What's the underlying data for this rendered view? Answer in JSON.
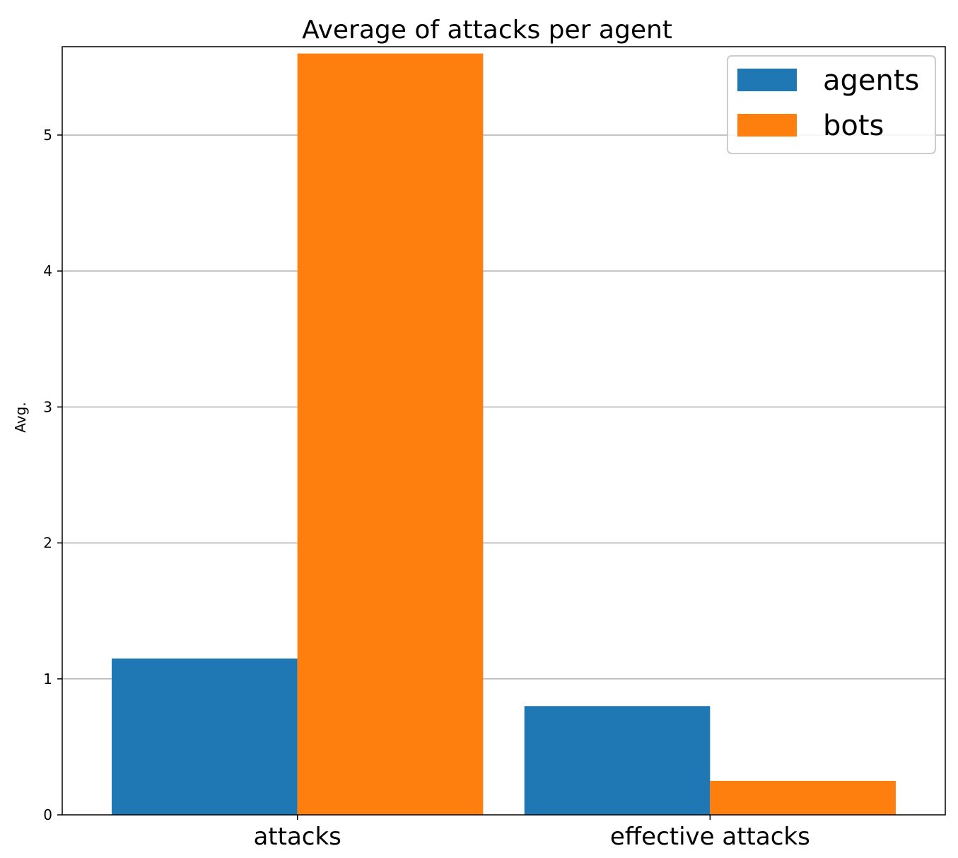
{
  "chart_data": {
    "type": "bar",
    "title": "Average of attacks per agent",
    "xlabel": "",
    "ylabel": "Avg.",
    "categories": [
      "attacks",
      "effective attacks"
    ],
    "series": [
      {
        "name": "agents",
        "color": "#1f77b4",
        "values": [
          1.15,
          0.8
        ]
      },
      {
        "name": "bots",
        "color": "#ff7f0e",
        "values": [
          5.6,
          0.25
        ]
      }
    ],
    "ylim": [
      0,
      5.65
    ],
    "yticks": [
      "0",
      "1",
      "2",
      "3",
      "4",
      "5"
    ],
    "grid": "y",
    "legend_position": "top-right"
  }
}
